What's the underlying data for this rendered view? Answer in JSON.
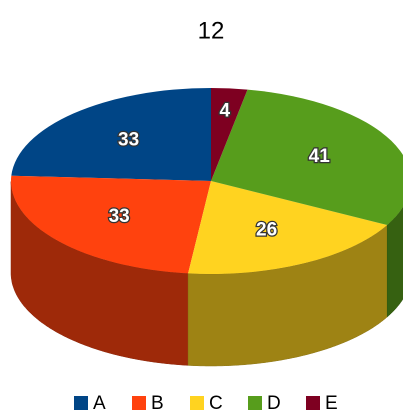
{
  "chart_data": {
    "type": "pie",
    "title": "12",
    "categories": [
      "A",
      "B",
      "C",
      "D",
      "E"
    ],
    "values": [
      33,
      33,
      26,
      41,
      4
    ],
    "colors": [
      "#004586",
      "#ff420e",
      "#ffd320",
      "#579d1c",
      "#7e0021"
    ],
    "legend": "bottom"
  }
}
